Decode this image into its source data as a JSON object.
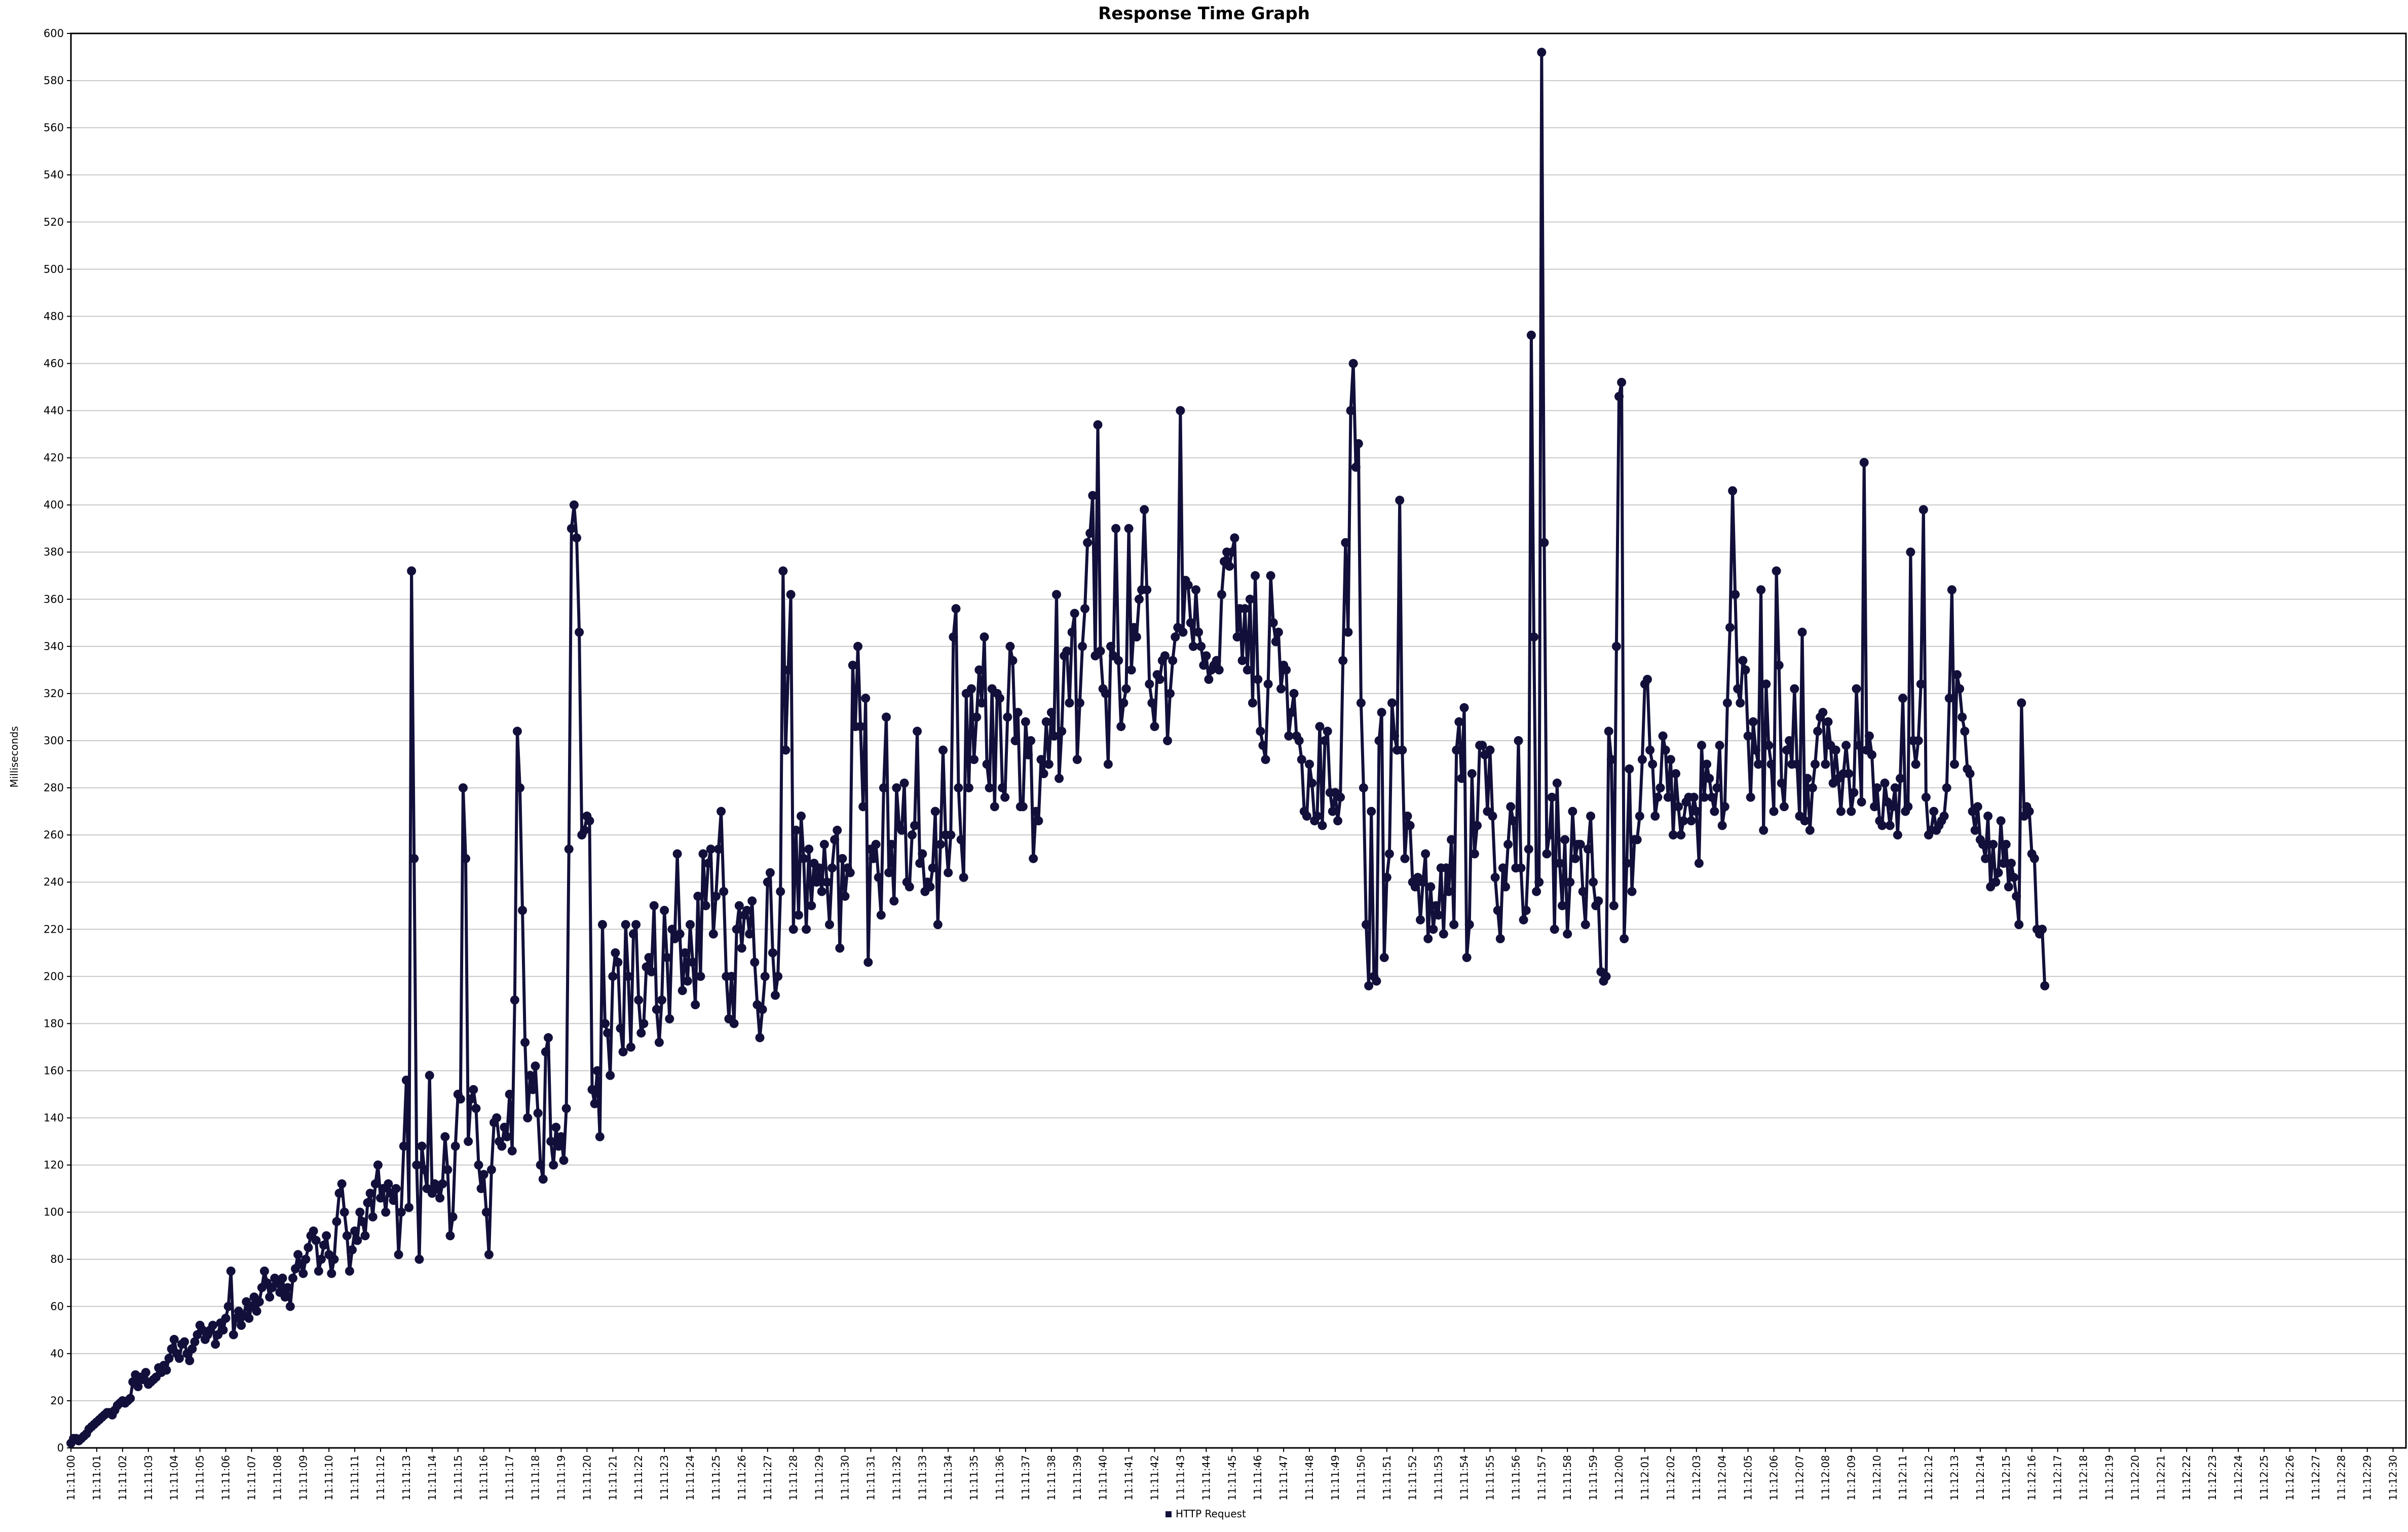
{
  "chart_data": {
    "type": "line",
    "title": "Response Time Graph",
    "xlabel": "",
    "ylabel": "Milliseconds",
    "ylim": [
      0,
      600
    ],
    "yticks": [
      0,
      20,
      40,
      60,
      80,
      100,
      120,
      140,
      160,
      180,
      200,
      220,
      240,
      260,
      280,
      300,
      320,
      340,
      360,
      380,
      400,
      420,
      440,
      460,
      480,
      500,
      520,
      540,
      560,
      580,
      600
    ],
    "x_tick_labels": [
      "11:11:00",
      "11:11:01",
      "11:11:02",
      "11:11:03",
      "11:11:04",
      "11:11:05",
      "11:11:06",
      "11:11:07",
      "11:11:08",
      "11:11:09",
      "11:11:10",
      "11:11:11",
      "11:11:12",
      "11:11:13",
      "11:11:14",
      "11:11:15",
      "11:11:16",
      "11:11:17",
      "11:11:18",
      "11:11:19",
      "11:11:20",
      "11:11:21",
      "11:11:22",
      "11:11:23",
      "11:11:24",
      "11:11:25",
      "11:11:26",
      "11:11:27",
      "11:11:28",
      "11:11:29",
      "11:11:30",
      "11:11:31",
      "11:11:32",
      "11:11:33",
      "11:11:34",
      "11:11:35",
      "11:11:36",
      "11:11:37",
      "11:11:38",
      "11:11:39",
      "11:11:40",
      "11:11:41",
      "11:11:42",
      "11:11:43",
      "11:11:44",
      "11:11:45",
      "11:11:46",
      "11:11:47",
      "11:11:48",
      "11:11:49",
      "11:11:50",
      "11:11:51",
      "11:11:52",
      "11:11:53",
      "11:11:54",
      "11:11:55",
      "11:11:56",
      "11:11:57",
      "11:11:58",
      "11:11:59",
      "11:12:00",
      "11:12:01",
      "11:12:02",
      "11:12:03",
      "11:12:04",
      "11:12:05",
      "11:12:06",
      "11:12:07",
      "11:12:08",
      "11:12:09",
      "11:12:10",
      "11:12:11",
      "11:12:12",
      "11:12:13",
      "11:12:14",
      "11:12:15",
      "11:12:16",
      "11:12:17",
      "11:12:18",
      "11:12:19",
      "11:12:20",
      "11:12:21",
      "11:12:22",
      "11:12:23",
      "11:12:24",
      "11:12:25",
      "11:12:26",
      "11:12:27",
      "11:12:28",
      "11:12:29",
      "11:12:30"
    ],
    "x_range": [
      "11:11:00",
      "11:12:30.5"
    ],
    "grid": "horizontal",
    "legend_position": "bottom-center",
    "series": [
      {
        "name": "HTTP Request",
        "color": "#12103a",
        "marker": "circle",
        "x_start": "11:11:00",
        "interval_seconds": 0.1,
        "values": [
          2,
          4,
          4,
          3,
          4,
          5,
          6,
          8,
          9,
          10,
          11,
          12,
          13,
          14,
          15,
          15,
          14,
          16,
          18,
          19,
          20,
          19,
          20,
          21,
          28,
          31,
          26,
          30,
          29,
          32,
          27,
          28,
          29,
          30,
          34,
          32,
          35,
          33,
          38,
          42,
          46,
          40,
          38,
          44,
          45,
          40,
          37,
          42,
          45,
          48,
          52,
          50,
          46,
          48,
          50,
          52,
          44,
          48,
          53,
          50,
          55,
          60,
          75,
          48,
          55,
          58,
          52,
          56,
          62,
          55,
          60,
          64,
          58,
          62,
          68,
          75,
          70,
          64,
          68,
          72,
          70,
          66,
          72,
          64,
          68,
          60,
          72,
          76,
          82,
          78,
          74,
          80,
          85,
          90,
          92,
          88,
          75,
          80,
          86,
          90,
          82,
          74,
          80,
          96,
          108,
          112,
          100,
          90,
          75,
          84,
          92,
          88,
          100,
          96,
          90,
          104,
          108,
          98,
          112,
          120,
          106,
          110,
          100,
          112,
          108,
          105,
          110,
          82,
          100,
          128,
          156,
          102,
          372,
          250,
          120,
          80,
          128,
          118,
          110,
          158,
          108,
          112,
          110,
          106,
          112,
          132,
          118,
          90,
          98,
          128,
          150,
          148,
          280,
          250,
          130,
          148,
          152,
          144,
          120,
          110,
          116,
          100,
          82,
          118,
          138,
          140,
          130,
          128,
          136,
          132,
          150,
          126,
          190,
          304,
          280,
          228,
          172,
          140,
          158,
          152,
          162,
          142,
          120,
          114,
          168,
          174,
          130,
          120,
          136,
          128,
          132,
          122,
          144,
          254,
          390,
          400,
          386,
          346,
          260,
          262,
          268,
          266,
          152,
          146,
          160,
          132,
          222,
          180,
          176,
          158,
          200,
          210,
          206,
          178,
          168,
          222,
          200,
          170,
          218,
          222,
          190,
          176,
          180,
          204,
          208,
          202,
          230,
          186,
          172,
          190,
          228,
          208,
          182,
          220,
          216,
          252,
          218,
          194,
          210,
          198,
          222,
          206,
          188,
          234,
          200,
          252,
          230,
          248,
          254,
          218,
          234,
          254,
          270,
          236,
          200,
          182,
          200,
          180,
          220,
          230,
          212,
          226,
          228,
          218,
          232,
          206,
          188,
          174,
          186,
          200,
          240,
          244,
          210,
          192,
          200,
          236,
          372,
          296,
          330,
          362,
          220,
          262,
          226,
          268,
          250,
          220,
          254,
          230,
          248,
          240,
          246,
          236,
          256,
          240,
          222,
          246,
          258,
          262,
          212,
          250,
          234,
          246,
          244,
          332,
          306,
          340,
          306,
          272,
          318,
          206,
          254,
          250,
          256,
          242,
          226,
          280,
          310,
          244,
          256,
          232,
          280,
          264,
          262,
          282,
          240,
          238,
          260,
          264,
          304,
          248,
          252,
          236,
          240,
          238,
          246,
          270,
          222,
          256,
          296,
          260,
          244,
          260,
          344,
          356,
          280,
          258,
          242,
          320,
          280,
          322,
          292,
          310,
          330,
          316,
          344,
          290,
          280,
          322,
          272,
          320,
          318,
          280,
          276,
          310,
          340,
          334,
          300,
          312,
          272,
          272,
          308,
          294,
          300,
          250,
          270,
          266,
          292,
          286,
          308,
          290,
          312,
          302,
          362,
          284,
          304,
          336,
          338,
          316,
          346,
          354,
          292,
          316,
          340,
          356,
          384,
          388,
          404,
          336,
          434,
          338,
          322,
          320,
          290,
          340,
          336,
          390,
          334,
          306,
          316,
          322,
          390,
          330,
          348,
          344,
          360,
          364,
          398,
          364,
          324,
          316,
          306,
          328,
          326,
          334,
          336,
          300,
          320,
          334,
          344,
          348,
          440,
          346,
          368,
          366,
          350,
          340,
          364,
          346,
          340,
          332,
          336,
          326,
          330,
          332,
          334,
          330,
          362,
          376,
          380,
          374,
          380,
          386,
          344,
          356,
          334,
          356,
          330,
          360,
          316,
          370,
          326,
          304,
          298,
          292,
          324,
          370,
          350,
          342,
          346,
          322,
          332,
          330,
          302,
          312,
          320,
          302,
          300,
          292,
          270,
          268,
          290,
          282,
          266,
          268,
          306,
          264,
          300,
          304,
          278,
          270,
          278,
          266,
          276,
          334,
          384,
          346,
          440,
          460,
          416,
          426,
          316,
          280,
          222,
          196,
          270,
          200,
          198,
          300,
          312,
          208,
          242,
          252,
          316,
          302,
          296,
          402,
          296,
          250,
          268,
          264,
          240,
          238,
          242,
          224,
          240,
          252,
          216,
          238,
          220,
          230,
          226,
          246,
          218,
          246,
          236,
          258,
          222,
          296,
          308,
          284,
          314,
          208,
          222,
          286,
          252,
          264,
          298,
          298,
          294,
          270,
          296,
          268,
          242,
          228,
          216,
          246,
          238,
          256,
          272,
          266,
          246,
          300,
          246,
          224,
          228,
          254,
          472,
          344,
          236,
          240,
          592,
          384,
          252,
          260,
          276,
          220,
          282,
          248,
          230,
          258,
          218,
          240,
          270,
          250,
          256,
          256,
          236,
          222,
          254,
          268,
          240,
          230,
          232,
          202,
          198,
          200,
          304,
          292,
          230,
          340,
          446,
          452,
          216,
          248,
          288,
          236,
          258,
          258,
          268,
          292,
          324,
          326,
          296,
          290,
          268,
          276,
          280,
          302,
          296,
          276,
          292,
          260,
          286,
          272,
          260,
          266,
          274,
          276,
          266,
          276,
          270,
          248,
          298,
          276,
          290,
          284,
          276,
          270,
          280,
          298,
          264,
          272,
          316,
          348,
          406,
          362,
          322,
          316,
          334,
          330,
          302,
          276,
          308,
          296,
          290,
          364,
          262,
          324,
          298,
          290,
          270,
          372,
          332,
          282,
          272,
          296,
          300,
          290,
          322,
          290,
          268,
          346,
          266,
          284,
          262,
          280,
          290,
          304,
          310,
          312,
          290,
          308,
          298,
          282,
          296,
          284,
          270,
          286,
          298,
          286,
          270,
          278,
          322,
          298,
          274,
          418,
          296,
          302,
          294,
          272,
          280,
          266,
          264,
          282,
          274,
          264,
          272,
          280,
          260,
          284,
          318,
          270,
          272,
          380,
          300,
          290,
          300,
          324,
          398,
          276,
          260,
          262,
          270,
          262,
          264,
          266,
          268,
          280,
          318,
          364,
          290,
          328,
          322,
          310,
          304,
          288,
          286,
          270,
          262,
          272,
          258,
          256,
          250,
          268,
          238,
          256,
          240,
          244,
          266,
          248,
          256,
          238,
          248,
          242,
          234,
          222,
          316,
          268,
          272,
          270,
          252,
          250,
          220,
          218,
          220,
          196
        ]
      }
    ]
  }
}
